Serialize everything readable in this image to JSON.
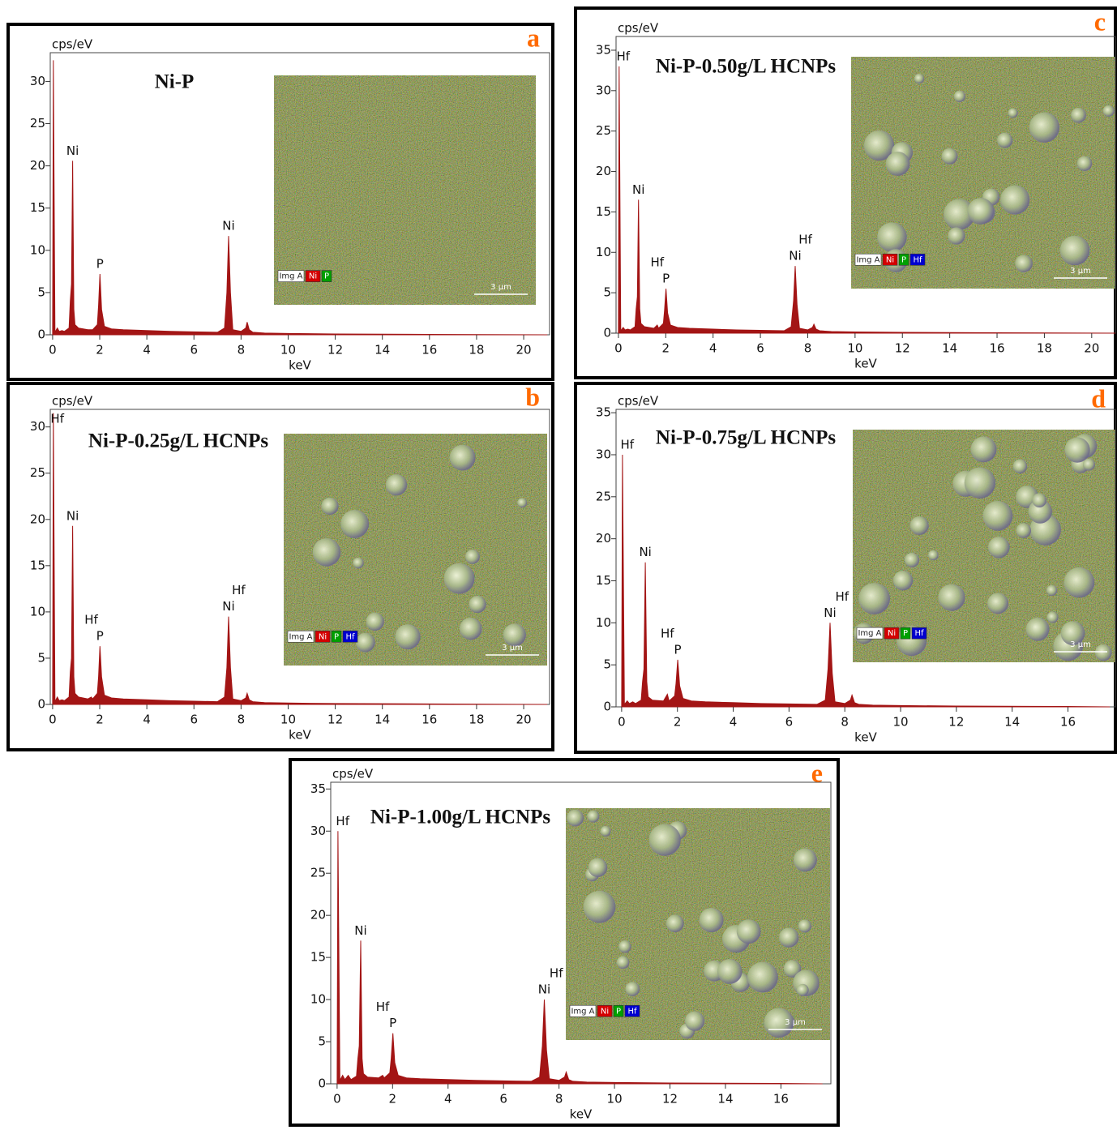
{
  "chart_data": [
    {
      "type": "area",
      "panel": "a",
      "title": "Ni-P",
      "y_label": "cps/eV",
      "x_label": "keV",
      "color": "#a31515",
      "x": [
        0,
        0.03,
        0.1,
        0.2,
        0.28,
        0.4,
        0.5,
        0.7,
        0.75,
        0.8,
        0.85,
        0.9,
        0.95,
        1.1,
        1.5,
        1.64,
        1.7,
        1.9,
        1.95,
        2.01,
        2.08,
        2.2,
        2.5,
        3,
        4,
        5,
        6,
        7,
        7.3,
        7.4,
        7.47,
        7.55,
        7.65,
        8.0,
        8.2,
        8.26,
        8.35,
        8.5,
        9,
        10,
        12,
        16,
        21
      ],
      "values": [
        0,
        32.5,
        0.3,
        0.8,
        0.4,
        0.5,
        0.4,
        0.8,
        4,
        6,
        20.6,
        3,
        1.2,
        0.8,
        0.6,
        0.6,
        0.6,
        1.2,
        3.5,
        7.2,
        3,
        1,
        0.7,
        0.6,
        0.5,
        0.4,
        0.35,
        0.3,
        0.8,
        5,
        11.7,
        5,
        0.6,
        0.4,
        0.8,
        1.5,
        0.6,
        0.3,
        0.2,
        0.15,
        0.1,
        0.05,
        0
      ],
      "xlim": [
        -0.1,
        21.1
      ],
      "ylim": [
        0,
        33.4
      ],
      "xticks": [
        0,
        2,
        4,
        6,
        8,
        10,
        12,
        14,
        16,
        18,
        20
      ],
      "yticks": [
        0,
        5,
        10,
        15,
        20,
        25,
        30
      ],
      "annotations": [
        {
          "text": "Ni",
          "x": 0.85
        },
        {
          "text": "P",
          "x": 2.01
        },
        {
          "text": "Ni",
          "x": 7.47
        }
      ],
      "inset": {
        "legend": [
          "Img A",
          "Ni",
          "P"
        ],
        "legend_colors": [
          "#ffffff",
          "#d40000",
          "#00a000"
        ],
        "scale": "3 μm"
      }
    },
    {
      "type": "area",
      "panel": "b",
      "title": "Ni-P-0.25g/L HCNPs",
      "y_label": "cps/eV",
      "x_label": "keV",
      "color": "#a31515",
      "x": [
        0,
        0.03,
        0.1,
        0.2,
        0.28,
        0.4,
        0.5,
        0.7,
        0.75,
        0.8,
        0.85,
        0.9,
        0.95,
        1.1,
        1.5,
        1.64,
        1.7,
        1.9,
        1.95,
        2.01,
        2.08,
        2.2,
        2.5,
        3,
        4,
        5,
        6,
        7,
        7.3,
        7.4,
        7.47,
        7.55,
        7.65,
        8.0,
        8.2,
        8.26,
        8.35,
        8.5,
        9,
        10,
        12,
        16,
        21
      ],
      "values": [
        0,
        31.5,
        0.3,
        0.8,
        0.4,
        0.5,
        0.4,
        0.8,
        3.5,
        5,
        19.3,
        3,
        1.2,
        0.8,
        0.6,
        0.8,
        0.6,
        1.2,
        3,
        6.3,
        3,
        1,
        0.7,
        0.6,
        0.5,
        0.4,
        0.35,
        0.3,
        0.8,
        4,
        9.5,
        4,
        0.6,
        0.4,
        0.7,
        1.2,
        0.5,
        0.3,
        0.2,
        0.15,
        0.1,
        0.05,
        0
      ],
      "xlim": [
        -0.1,
        21.1
      ],
      "ylim": [
        0,
        31.9
      ],
      "xticks": [
        0,
        2,
        4,
        6,
        8,
        10,
        12,
        14,
        16,
        18,
        20
      ],
      "yticks": [
        0,
        5,
        10,
        15,
        20,
        25,
        30
      ],
      "annotations": [
        {
          "text": "Hf",
          "x": 0.2
        },
        {
          "text": "Ni",
          "x": 0.85
        },
        {
          "text": "P",
          "x": 2.01
        },
        {
          "text": "Hf",
          "x": 1.64
        },
        {
          "text": "Ni",
          "x": 7.47
        },
        {
          "text": "Hf",
          "x": 7.9
        }
      ],
      "inset": {
        "legend": [
          "Img A",
          "Ni",
          "P",
          "Hf"
        ],
        "legend_colors": [
          "#ffffff",
          "#d40000",
          "#00a000",
          "#0000d0"
        ],
        "scale": "3 μm"
      }
    },
    {
      "type": "area",
      "panel": "c",
      "title": "Ni-P-0.50g/L HCNPs",
      "y_label": "cps/eV",
      "x_label": "keV",
      "color": "#a31515",
      "x": [
        0,
        0.03,
        0.1,
        0.2,
        0.28,
        0.4,
        0.5,
        0.7,
        0.75,
        0.8,
        0.85,
        0.9,
        0.95,
        1.1,
        1.5,
        1.64,
        1.7,
        1.9,
        1.95,
        2.01,
        2.08,
        2.2,
        2.5,
        3,
        4,
        5,
        6,
        7,
        7.3,
        7.4,
        7.47,
        7.55,
        7.65,
        8.0,
        8.2,
        8.26,
        8.35,
        8.5,
        9,
        10,
        12,
        16,
        21
      ],
      "values": [
        0,
        33,
        0.3,
        0.7,
        0.4,
        0.5,
        0.4,
        0.8,
        3,
        4.5,
        16.5,
        3,
        1.2,
        0.8,
        0.6,
        1,
        0.6,
        1.2,
        2.8,
        5.5,
        2.5,
        1,
        0.7,
        0.6,
        0.5,
        0.4,
        0.35,
        0.3,
        0.8,
        4,
        8.3,
        3.5,
        0.6,
        0.4,
        0.7,
        1.1,
        0.5,
        0.3,
        0.2,
        0.15,
        0.1,
        0.05,
        0
      ],
      "xlim": [
        -0.1,
        21.0
      ],
      "ylim": [
        0,
        36.7
      ],
      "xticks": [
        0,
        2,
        4,
        6,
        8,
        10,
        12,
        14,
        16,
        18,
        20
      ],
      "yticks": [
        0,
        5,
        10,
        15,
        20,
        25,
        30,
        35
      ],
      "annotations": [
        {
          "text": "Hf",
          "x": 0.2
        },
        {
          "text": "Ni",
          "x": 0.85
        },
        {
          "text": "P",
          "x": 2.01
        },
        {
          "text": "Hf",
          "x": 1.64
        },
        {
          "text": "Ni",
          "x": 7.47
        },
        {
          "text": "Hf",
          "x": 7.9
        }
      ],
      "inset": {
        "legend": [
          "Img A",
          "Ni",
          "P",
          "Hf"
        ],
        "legend_colors": [
          "#ffffff",
          "#d40000",
          "#00a000",
          "#0000d0"
        ],
        "scale": "3 μm"
      }
    },
    {
      "type": "area",
      "panel": "d",
      "title": "Ni-P-0.75g/L HCNPs",
      "y_label": "cps/eV",
      "x_label": "keV",
      "color": "#a31515",
      "x": [
        0,
        0.03,
        0.1,
        0.2,
        0.28,
        0.4,
        0.5,
        0.7,
        0.75,
        0.8,
        0.85,
        0.9,
        0.95,
        1.1,
        1.5,
        1.64,
        1.7,
        1.9,
        1.95,
        2.01,
        2.08,
        2.2,
        2.5,
        3,
        4,
        5,
        6,
        7,
        7.3,
        7.4,
        7.47,
        7.55,
        7.65,
        8.0,
        8.2,
        8.26,
        8.35,
        8.5,
        9,
        10,
        12,
        16,
        17.5
      ],
      "values": [
        0,
        30,
        0.3,
        0.7,
        0.4,
        0.6,
        0.4,
        0.8,
        3,
        4.5,
        17.2,
        3,
        1.2,
        0.8,
        0.7,
        1.5,
        0.7,
        1.3,
        2.8,
        5.6,
        2.5,
        1,
        0.7,
        0.6,
        0.5,
        0.4,
        0.35,
        0.3,
        0.8,
        4.5,
        10,
        4,
        0.6,
        0.4,
        0.8,
        1.4,
        0.5,
        0.3,
        0.2,
        0.15,
        0.1,
        0.05,
        0
      ],
      "xlim": [
        -0.2,
        17.7
      ],
      "ylim": [
        0,
        35.4
      ],
      "xticks": [
        0,
        2,
        4,
        6,
        8,
        10,
        12,
        14,
        16
      ],
      "yticks": [
        0,
        5,
        10,
        15,
        20,
        25,
        30,
        35
      ],
      "annotations": [
        {
          "text": "Hf",
          "x": 0.2
        },
        {
          "text": "Ni",
          "x": 0.85
        },
        {
          "text": "P",
          "x": 2.01
        },
        {
          "text": "Hf",
          "x": 1.64
        },
        {
          "text": "Ni",
          "x": 7.47
        },
        {
          "text": "Hf",
          "x": 7.9
        }
      ],
      "inset": {
        "legend": [
          "Img A",
          "Ni",
          "P",
          "Hf"
        ],
        "legend_colors": [
          "#ffffff",
          "#d40000",
          "#00a000",
          "#0000d0"
        ],
        "scale": "3 μm"
      }
    },
    {
      "type": "area",
      "panel": "e",
      "title": "Ni-P-1.00g/L HCNPs",
      "y_label": "cps/eV",
      "x_label": "keV",
      "color": "#a31515",
      "x": [
        0,
        0.03,
        0.1,
        0.2,
        0.28,
        0.4,
        0.5,
        0.7,
        0.75,
        0.8,
        0.85,
        0.9,
        0.95,
        1.1,
        1.5,
        1.64,
        1.7,
        1.9,
        1.95,
        2.01,
        2.08,
        2.2,
        2.5,
        3,
        4,
        5,
        6,
        7,
        7.3,
        7.4,
        7.47,
        7.55,
        7.65,
        8.0,
        8.2,
        8.26,
        8.35,
        8.5,
        9,
        10,
        12,
        16,
        17.5
      ],
      "values": [
        0,
        30,
        0.4,
        1,
        0.5,
        1,
        0.5,
        0.9,
        3,
        4.5,
        17,
        3,
        1.2,
        0.8,
        0.7,
        1,
        0.7,
        1.3,
        3,
        6,
        2.5,
        1,
        0.7,
        0.6,
        0.5,
        0.4,
        0.35,
        0.3,
        0.8,
        4.5,
        10,
        4,
        0.6,
        0.4,
        0.8,
        1.4,
        0.5,
        0.3,
        0.2,
        0.15,
        0.1,
        0.05,
        0
      ],
      "xlim": [
        -0.23,
        17.8
      ],
      "ylim": [
        0,
        35.8
      ],
      "xticks": [
        0,
        2,
        4,
        6,
        8,
        10,
        12,
        14,
        16
      ],
      "yticks": [
        0,
        5,
        10,
        15,
        20,
        25,
        30,
        35
      ],
      "annotations": [
        {
          "text": "Hf",
          "x": 0.2
        },
        {
          "text": "Ni",
          "x": 0.85
        },
        {
          "text": "P",
          "x": 2.01
        },
        {
          "text": "Hf",
          "x": 1.64
        },
        {
          "text": "Ni",
          "x": 7.47
        },
        {
          "text": "Hf",
          "x": 7.9
        }
      ],
      "inset": {
        "legend": [
          "Img A",
          "Ni",
          "P",
          "Hf"
        ],
        "legend_colors": [
          "#ffffff",
          "#d40000",
          "#00a000",
          "#0000d0"
        ],
        "scale": "3 μm"
      }
    }
  ]
}
